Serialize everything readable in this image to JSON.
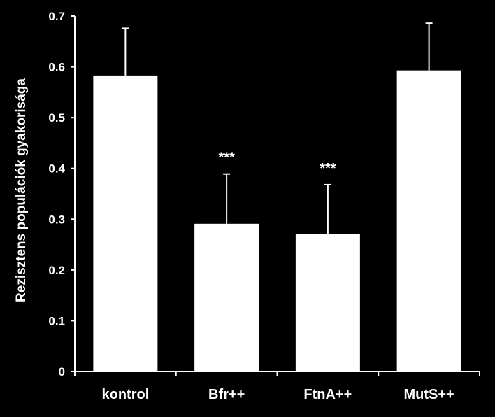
{
  "chart_data": {
    "type": "bar",
    "title": "",
    "xlabel": "",
    "ylabel": "Rezisztens populációk gyakorisága",
    "categories": [
      "kontrol",
      "Bfr++",
      "FtnA++",
      "MutS++"
    ],
    "values": [
      0.583,
      0.291,
      0.271,
      0.593
    ],
    "error_upper": [
      0.093,
      0.098,
      0.097,
      0.093
    ],
    "annotations": [
      "",
      "***",
      "***",
      ""
    ],
    "ylim": [
      0,
      0.7
    ],
    "yticks": [
      0,
      0.1,
      0.2,
      0.3,
      0.4,
      0.5,
      0.6,
      0.7
    ],
    "ytick_labels": [
      "0",
      "0.1",
      "0.2",
      "0.3",
      "0.4",
      "0.5",
      "0.6",
      "0.7"
    ],
    "grid": false,
    "legend": "none",
    "colors": {
      "background": "#000000",
      "bar": "#ffffff",
      "axis": "#ffffff",
      "text": "#ffffff"
    }
  }
}
